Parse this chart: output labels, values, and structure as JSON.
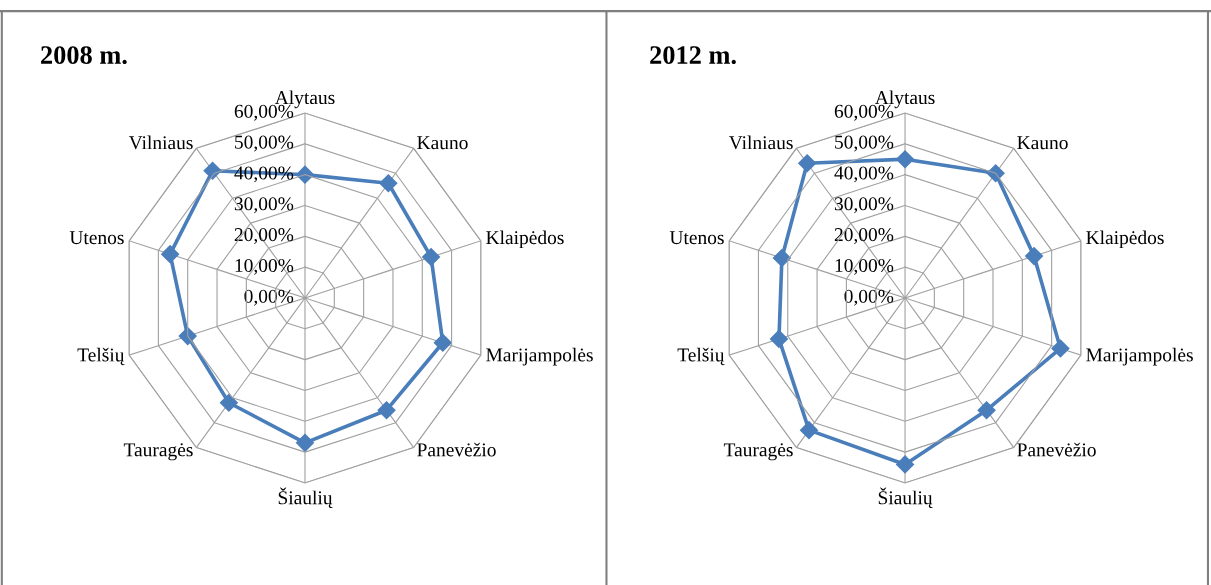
{
  "chart_data": [
    {
      "type": "radar",
      "title": "2008 m.",
      "categories": [
        "Alytaus",
        "Kauno",
        "Klaipėdos",
        "Marijampolės",
        "Panevėžio",
        "Šiaulių",
        "Tauragės",
        "Telšių",
        "Utenos",
        "Vilniaus"
      ],
      "series": [
        {
          "color": "#4a7ebb",
          "values": [
            40,
            46,
            43,
            47,
            45,
            47,
            42,
            40,
            46,
            51
          ]
        }
      ],
      "ylim": [
        0,
        60
      ],
      "yticks": [
        {
          "value": 0,
          "label": "0,00%"
        },
        {
          "value": 10,
          "label": "10,00%"
        },
        {
          "value": 20,
          "label": "20,00%"
        },
        {
          "value": 30,
          "label": "30,00%"
        },
        {
          "value": 40,
          "label": "40,00%"
        },
        {
          "value": 50,
          "label": "50,00%"
        },
        {
          "value": 60,
          "label": "60,00%"
        }
      ],
      "grid": true,
      "marker": "diamond",
      "line_style": "solid"
    },
    {
      "type": "radar",
      "title": "2012 m.",
      "categories": [
        "Alytaus",
        "Kauno",
        "Klaipėdos",
        "Marijampolės",
        "Panevėžio",
        "Šiaulių",
        "Tauragės",
        "Telšių",
        "Utenos",
        "Vilniaus"
      ],
      "series": [
        {
          "color": "#4a7ebb",
          "values": [
            45,
            50,
            44,
            53,
            45,
            54,
            53,
            43,
            42,
            54
          ]
        }
      ],
      "ylim": [
        0,
        60
      ],
      "yticks": [
        {
          "value": 0,
          "label": "0,00%"
        },
        {
          "value": 10,
          "label": "10,00%"
        },
        {
          "value": 20,
          "label": "20,00%"
        },
        {
          "value": 30,
          "label": "30,00%"
        },
        {
          "value": 40,
          "label": "40,00%"
        },
        {
          "value": 50,
          "label": "50,00%"
        },
        {
          "value": 60,
          "label": "60,00%"
        }
      ],
      "grid": true,
      "marker": "diamond",
      "line_style": "solid"
    }
  ]
}
